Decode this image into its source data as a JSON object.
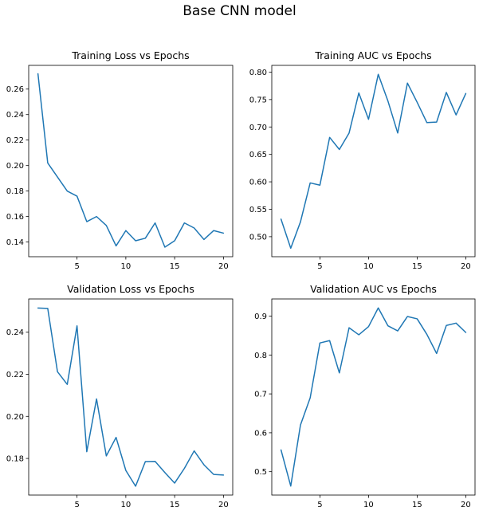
{
  "figure": {
    "suptitle": "Base CNN model"
  },
  "colors": {
    "line": "#1f77b4"
  },
  "chart_data": [
    {
      "type": "line",
      "title": "Training Loss vs Epochs",
      "xlabel": "",
      "ylabel": "",
      "x": [
        1,
        2,
        3,
        4,
        5,
        6,
        7,
        8,
        9,
        10,
        11,
        12,
        13,
        14,
        15,
        16,
        17,
        18,
        19,
        20
      ],
      "values": [
        0.272,
        0.202,
        0.191,
        0.18,
        0.176,
        0.156,
        0.16,
        0.153,
        0.137,
        0.149,
        0.141,
        0.143,
        0.155,
        0.136,
        0.141,
        0.155,
        0.151,
        0.142,
        0.149,
        0.147
      ],
      "xlim": [
        0.05,
        20.95
      ],
      "ylim": [
        0.1285,
        0.2786
      ],
      "xticks": [
        5,
        10,
        15,
        20
      ],
      "xtick_labels": [
        "5",
        "10",
        "15",
        "20"
      ],
      "yticks": [
        0.14,
        0.16,
        0.18,
        0.2,
        0.22,
        0.24,
        0.26
      ],
      "ytick_labels": [
        "0.14",
        "0.16",
        "0.18",
        "0.20",
        "0.22",
        "0.24",
        "0.26"
      ],
      "grid": false
    },
    {
      "type": "line",
      "title": "Training AUC vs Epochs",
      "xlabel": "",
      "ylabel": "",
      "x": [
        1,
        2,
        3,
        4,
        5,
        6,
        7,
        8,
        9,
        10,
        11,
        12,
        13,
        14,
        15,
        16,
        17,
        18,
        19,
        20
      ],
      "values": [
        0.532,
        0.479,
        0.527,
        0.598,
        0.594,
        0.681,
        0.659,
        0.689,
        0.762,
        0.714,
        0.796,
        0.747,
        0.689,
        0.78,
        0.745,
        0.708,
        0.709,
        0.763,
        0.722,
        0.761
      ],
      "xlim": [
        0.05,
        20.95
      ],
      "ylim": [
        0.4635,
        0.8123
      ],
      "xticks": [
        5,
        10,
        15,
        20
      ],
      "xtick_labels": [
        "5",
        "10",
        "15",
        "20"
      ],
      "yticks": [
        0.5,
        0.55,
        0.6,
        0.65,
        0.7,
        0.75,
        0.8
      ],
      "ytick_labels": [
        "0.50",
        "0.55",
        "0.60",
        "0.65",
        "0.70",
        "0.75",
        "0.80"
      ],
      "grid": false
    },
    {
      "type": "line",
      "title": "Validation Loss vs Epochs",
      "xlabel": "",
      "ylabel": "",
      "x": [
        1,
        2,
        3,
        4,
        5,
        6,
        7,
        8,
        9,
        10,
        11,
        12,
        13,
        14,
        15,
        16,
        17,
        18,
        19,
        20
      ],
      "values": [
        0.2515,
        0.2513,
        0.2212,
        0.2152,
        0.243,
        0.1832,
        0.2083,
        0.1812,
        0.19,
        0.1743,
        0.1668,
        0.1785,
        0.1786,
        0.1733,
        0.1683,
        0.1753,
        0.1836,
        0.177,
        0.1724,
        0.1721
      ],
      "xlim": [
        0.05,
        20.95
      ],
      "ylim": [
        0.1626,
        0.2558
      ],
      "xticks": [
        5,
        10,
        15,
        20
      ],
      "xtick_labels": [
        "5",
        "10",
        "15",
        "20"
      ],
      "yticks": [
        0.18,
        0.2,
        0.22,
        0.24
      ],
      "ytick_labels": [
        "0.18",
        "0.20",
        "0.22",
        "0.24"
      ],
      "grid": false
    },
    {
      "type": "line",
      "title": "Validation AUC vs Epochs",
      "xlabel": "",
      "ylabel": "",
      "x": [
        1,
        2,
        3,
        4,
        5,
        6,
        7,
        8,
        9,
        10,
        11,
        12,
        13,
        14,
        15,
        16,
        17,
        18,
        19,
        20
      ],
      "values": [
        0.556,
        0.463,
        0.62,
        0.69,
        0.831,
        0.837,
        0.754,
        0.87,
        0.852,
        0.873,
        0.921,
        0.875,
        0.862,
        0.899,
        0.893,
        0.853,
        0.804,
        0.876,
        0.882,
        0.858
      ],
      "xlim": [
        0.05,
        20.95
      ],
      "ylim": [
        0.4399,
        0.9441
      ],
      "xticks": [
        5,
        10,
        15,
        20
      ],
      "xtick_labels": [
        "5",
        "10",
        "15",
        "20"
      ],
      "yticks": [
        0.5,
        0.6,
        0.7,
        0.8,
        0.9
      ],
      "ytick_labels": [
        "0.5",
        "0.6",
        "0.7",
        "0.8",
        "0.9"
      ],
      "grid": false
    }
  ]
}
